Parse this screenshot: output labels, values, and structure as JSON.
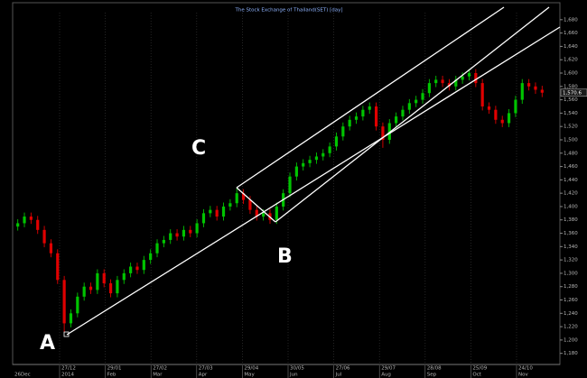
{
  "chart_data": {
    "type": "candlestick",
    "title": "The Stock Exchange of Thailand(SET) [day]",
    "up_color": "#00c400",
    "down_color": "#e00000",
    "ylim": [
      1162,
      1696
    ],
    "yticks": [
      {
        "value": 1180,
        "label": "1,180"
      },
      {
        "value": 1200,
        "label": "1,200"
      },
      {
        "value": 1220,
        "label": "1,220"
      },
      {
        "value": 1240,
        "label": "1,240"
      },
      {
        "value": 1260,
        "label": "1,260"
      },
      {
        "value": 1280,
        "label": "1,280"
      },
      {
        "value": 1300,
        "label": "1,300"
      },
      {
        "value": 1320,
        "label": "1,320"
      },
      {
        "value": 1340,
        "label": "1,340"
      },
      {
        "value": 1360,
        "label": "1,360"
      },
      {
        "value": 1380,
        "label": "1,380"
      },
      {
        "value": 1400,
        "label": "1,400"
      },
      {
        "value": 1420,
        "label": "1,420"
      },
      {
        "value": 1440,
        "label": "1,440"
      },
      {
        "value": 1460,
        "label": "1,460"
      },
      {
        "value": 1480,
        "label": "1,480"
      },
      {
        "value": 1500,
        "label": "1,500"
      },
      {
        "value": 1520,
        "label": "1,520"
      },
      {
        "value": 1540,
        "label": "1,540"
      },
      {
        "value": 1560,
        "label": "1,560"
      },
      {
        "value": 1580,
        "label": "1,580"
      },
      {
        "value": 1600,
        "label": "1,600"
      },
      {
        "value": 1620,
        "label": "1,620"
      },
      {
        "value": 1640,
        "label": "1,640"
      },
      {
        "value": 1660,
        "label": "1,660"
      },
      {
        "value": 1680,
        "label": "1,680"
      }
    ],
    "last_value": {
      "value": 1570.6,
      "label": "1,570.6"
    },
    "x_start_label": "26Dec",
    "x_labels_top": [
      "27/12",
      "29/01",
      "27/02",
      "27/03",
      "29/04",
      "30/05",
      "27/06",
      "29/07",
      "28/08",
      "25/09",
      "24/10"
    ],
    "x_labels_bottom": [
      "2014",
      "Feb",
      "Mar",
      "Apr",
      "May",
      "Jun",
      "Jul",
      "Aug",
      "Sep",
      "Oct",
      "Nov"
    ],
    "annotations": [
      "A",
      "B",
      "C"
    ],
    "ohlc": [
      [
        1370,
        1381,
        1364,
        1375
      ],
      [
        1375,
        1391,
        1369,
        1385
      ],
      [
        1385,
        1391,
        1374,
        1380
      ],
      [
        1380,
        1386,
        1359,
        1365
      ],
      [
        1365,
        1371,
        1339,
        1345
      ],
      [
        1345,
        1351,
        1324,
        1330
      ],
      [
        1330,
        1336,
        1284,
        1290
      ],
      [
        1290,
        1296,
        1212,
        1225
      ],
      [
        1225,
        1246,
        1219,
        1240
      ],
      [
        1240,
        1271,
        1234,
        1265
      ],
      [
        1265,
        1286,
        1259,
        1280
      ],
      [
        1280,
        1286,
        1269,
        1275
      ],
      [
        1275,
        1306,
        1269,
        1300
      ],
      [
        1300,
        1306,
        1279,
        1285
      ],
      [
        1285,
        1291,
        1264,
        1270
      ],
      [
        1270,
        1296,
        1264,
        1290
      ],
      [
        1290,
        1306,
        1284,
        1300
      ],
      [
        1300,
        1316,
        1294,
        1310
      ],
      [
        1310,
        1316,
        1299,
        1305
      ],
      [
        1305,
        1326,
        1299,
        1320
      ],
      [
        1320,
        1336,
        1314,
        1330
      ],
      [
        1330,
        1351,
        1324,
        1345
      ],
      [
        1345,
        1356,
        1339,
        1350
      ],
      [
        1350,
        1366,
        1344,
        1360
      ],
      [
        1360,
        1366,
        1349,
        1355
      ],
      [
        1355,
        1371,
        1349,
        1365
      ],
      [
        1365,
        1371,
        1354,
        1360
      ],
      [
        1360,
        1381,
        1354,
        1375
      ],
      [
        1375,
        1396,
        1369,
        1390
      ],
      [
        1390,
        1401,
        1384,
        1395
      ],
      [
        1395,
        1401,
        1379,
        1385
      ],
      [
        1385,
        1406,
        1379,
        1400
      ],
      [
        1400,
        1411,
        1394,
        1405
      ],
      [
        1405,
        1428,
        1399,
        1420
      ],
      [
        1420,
        1426,
        1404,
        1410
      ],
      [
        1410,
        1416,
        1389,
        1395
      ],
      [
        1395,
        1401,
        1379,
        1385
      ],
      [
        1385,
        1396,
        1379,
        1390
      ],
      [
        1390,
        1396,
        1374,
        1380
      ],
      [
        1380,
        1406,
        1374,
        1400
      ],
      [
        1400,
        1426,
        1394,
        1420
      ],
      [
        1420,
        1451,
        1414,
        1445
      ],
      [
        1445,
        1466,
        1439,
        1460
      ],
      [
        1460,
        1471,
        1454,
        1465
      ],
      [
        1465,
        1476,
        1459,
        1470
      ],
      [
        1470,
        1481,
        1464,
        1475
      ],
      [
        1475,
        1486,
        1469,
        1480
      ],
      [
        1480,
        1496,
        1474,
        1490
      ],
      [
        1490,
        1511,
        1484,
        1505
      ],
      [
        1505,
        1526,
        1499,
        1520
      ],
      [
        1520,
        1536,
        1514,
        1530
      ],
      [
        1530,
        1541,
        1524,
        1535
      ],
      [
        1535,
        1551,
        1529,
        1545
      ],
      [
        1545,
        1556,
        1539,
        1550
      ],
      [
        1550,
        1556,
        1514,
        1520
      ],
      [
        1520,
        1526,
        1488,
        1500
      ],
      [
        1500,
        1531,
        1494,
        1525
      ],
      [
        1525,
        1541,
        1519,
        1535
      ],
      [
        1535,
        1551,
        1529,
        1545
      ],
      [
        1545,
        1561,
        1539,
        1555
      ],
      [
        1555,
        1566,
        1549,
        1560
      ],
      [
        1560,
        1576,
        1554,
        1570
      ],
      [
        1570,
        1591,
        1564,
        1585
      ],
      [
        1585,
        1596,
        1579,
        1590
      ],
      [
        1590,
        1596,
        1579,
        1585
      ],
      [
        1585,
        1591,
        1574,
        1580
      ],
      [
        1580,
        1596,
        1574,
        1590
      ],
      [
        1590,
        1601,
        1584,
        1595
      ],
      [
        1595,
        1606,
        1589,
        1600
      ],
      [
        1600,
        1606,
        1579,
        1585
      ],
      [
        1585,
        1591,
        1544,
        1550
      ],
      [
        1550,
        1556,
        1539,
        1545
      ],
      [
        1545,
        1551,
        1524,
        1530
      ],
      [
        1530,
        1536,
        1519,
        1525
      ],
      [
        1525,
        1546,
        1519,
        1540
      ],
      [
        1540,
        1566,
        1534,
        1560
      ],
      [
        1560,
        1591,
        1554,
        1585
      ],
      [
        1585,
        1591,
        1574,
        1580
      ],
      [
        1580,
        1586,
        1569,
        1575
      ],
      [
        1575,
        1581,
        1564,
        1570.6
      ]
    ]
  }
}
